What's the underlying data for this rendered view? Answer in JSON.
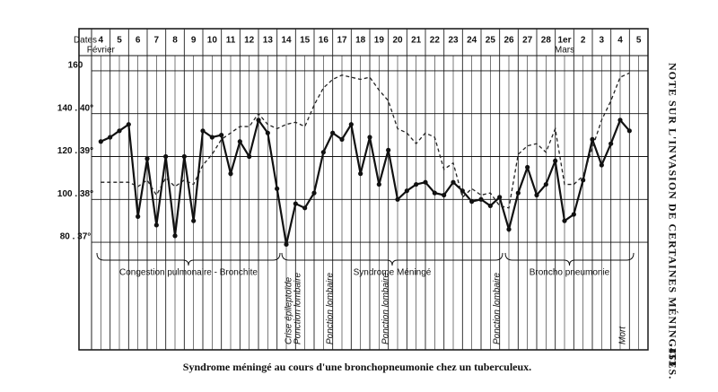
{
  "chart_data": {
    "type": "line",
    "title": "Syndrome méningé au cours d'une bronchopneumonie chez un tuberculeux.",
    "x_label": "Dates",
    "categories": [
      "4",
      "5",
      "6",
      "7",
      "8",
      "9",
      "10",
      "11",
      "12",
      "13",
      "14",
      "15",
      "16",
      "17",
      "18",
      "19",
      "20",
      "21",
      "22",
      "23",
      "24",
      "25",
      "26",
      "27",
      "28",
      "1er",
      "2",
      "3",
      "4",
      "5"
    ],
    "month_labels": [
      "Février",
      "Mars"
    ],
    "x": [
      0,
      1,
      2,
      3,
      4,
      5,
      6,
      7,
      8,
      9,
      10,
      11,
      12,
      13,
      14,
      15,
      16,
      17,
      18,
      19,
      20,
      21,
      22,
      23,
      24,
      25,
      26,
      27,
      28,
      29,
      30,
      31,
      32,
      33,
      34,
      35,
      36,
      37,
      38,
      39,
      40,
      41,
      42,
      43,
      44,
      45,
      46,
      47,
      48,
      49,
      50,
      51,
      52,
      53,
      54,
      55,
      56,
      57,
      58,
      59
    ],
    "xlim": [
      0,
      60
    ],
    "ylim": [
      75,
      165
    ],
    "yticks": [
      {
        "value": 160,
        "label": "160"
      },
      {
        "value": 140,
        "label": "140 . 40°"
      },
      {
        "value": 120,
        "label": "120 . 39°"
      },
      {
        "value": 100,
        "label": "100 . 38°"
      },
      {
        "value": 80,
        "label": "80 . 37°"
      }
    ],
    "y2lim": [
      36.75,
      41.25
    ],
    "grid": true,
    "series": [
      {
        "color": "#111",
        "style": "solid",
        "markers": true,
        "values": [
          null,
          127,
          129,
          132,
          135,
          92,
          119,
          88,
          120,
          83,
          120,
          90,
          132,
          129,
          130,
          112,
          127,
          120,
          137,
          131,
          105,
          79,
          98,
          96,
          103,
          122,
          131,
          128,
          135,
          112,
          129,
          107,
          123,
          100,
          104,
          107,
          108,
          103,
          102,
          108,
          104,
          99,
          100,
          97,
          101,
          86,
          103,
          115,
          102,
          107,
          118,
          90,
          93,
          109,
          128,
          116,
          126,
          137,
          132,
          null
        ]
      },
      {
        "color": "#222",
        "style": "dashed",
        "axis": "y2",
        "values": [
          null,
          38.4,
          38.4,
          38.4,
          38.4,
          38.3,
          38.45,
          38.1,
          38.5,
          38.3,
          38.45,
          38.35,
          38.8,
          39.05,
          39.4,
          39.55,
          39.7,
          39.7,
          40.0,
          39.75,
          39.65,
          39.75,
          39.8,
          39.7,
          40.2,
          40.6,
          40.8,
          40.9,
          40.85,
          40.8,
          40.85,
          40.55,
          40.3,
          39.65,
          39.55,
          39.3,
          39.55,
          39.45,
          38.7,
          38.85,
          38.05,
          38.25,
          38.1,
          38.15,
          37.85,
          37.8,
          39.05,
          39.25,
          39.3,
          39.1,
          39.65,
          38.35,
          38.35,
          38.55,
          39.2,
          39.85,
          40.3,
          40.85,
          40.95,
          null
        ]
      }
    ],
    "phases": [
      "Congestion pulmonaire - Bronchite",
      "Syndrome Méningé",
      "Broncho pneumonie"
    ],
    "annotations": [
      "Crise épileptoïde",
      "Ponction lombaire",
      "Ponction lombaire",
      "Ponction lombaire",
      "Ponction lombaire",
      "Mort"
    ]
  },
  "page": {
    "running_head": "NOTE SUR L'INVASION DE CERTAINES MÉNINGITES.",
    "page_number": "453"
  }
}
